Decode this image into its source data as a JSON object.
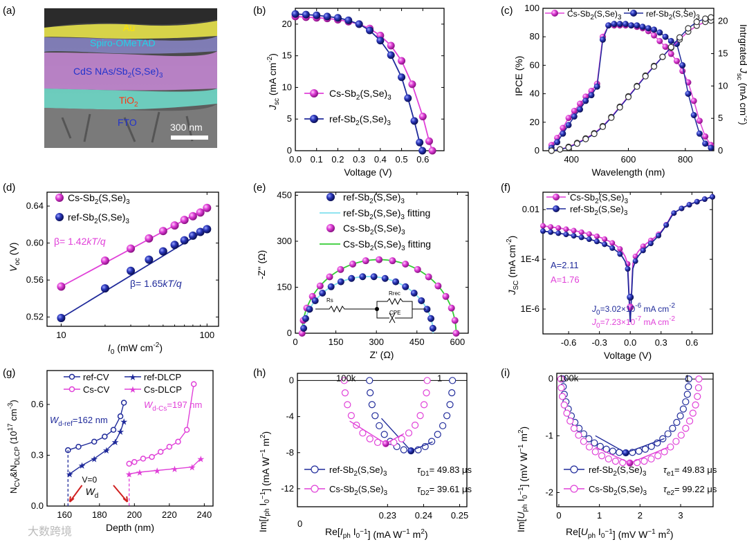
{
  "colors": {
    "cs": "#e040d8",
    "ref": "#1f2a9a",
    "cyan": "#7fe0ee",
    "green": "#33cc33"
  },
  "panel_labels": [
    "(a)",
    "(b)",
    "(c)",
    "(d)",
    "(e)",
    "(f)",
    "(g)",
    "(h)",
    "(i)"
  ],
  "panel_a": {
    "layers": [
      {
        "text": "Au",
        "color": "#ffe600"
      },
      {
        "text": "Spiro-OMeTAD",
        "color": "#21d4e8"
      },
      {
        "text": "CdS NAs/Sb2(S,Se)3",
        "color": "#2233cc"
      },
      {
        "text": "TiO2",
        "color": "#ff3311"
      },
      {
        "text": "FTO",
        "color": "#2233cc"
      }
    ],
    "scalebar": "300 nm"
  },
  "watermark": "大数跨境",
  "chart_data": [
    {
      "id": "b",
      "type": "line",
      "xlabel": "Voltage (V)",
      "ylabel": "Jsc (mA cm-2)",
      "xlim": [
        0,
        0.7
      ],
      "ylim": [
        0,
        22.5
      ],
      "xticks": [
        0.0,
        0.1,
        0.2,
        0.3,
        0.4,
        0.5,
        0.6
      ],
      "yticks": [
        0,
        5,
        10,
        15,
        20
      ],
      "series": [
        {
          "name": "Cs-Sb2(S,Se)3",
          "color": "#e040d8",
          "x": [
            0,
            0.05,
            0.1,
            0.15,
            0.2,
            0.25,
            0.3,
            0.35,
            0.4,
            0.45,
            0.5,
            0.55,
            0.6,
            0.63,
            0.645
          ],
          "y": [
            21.2,
            21.1,
            21.0,
            20.9,
            20.7,
            20.4,
            20.0,
            19.3,
            18.2,
            16.6,
            14.2,
            10.5,
            5.4,
            1.5,
            0
          ]
        },
        {
          "name": "ref-Sb2(S,Se)3",
          "color": "#1f2a9a",
          "x": [
            0,
            0.05,
            0.1,
            0.15,
            0.2,
            0.25,
            0.3,
            0.35,
            0.4,
            0.45,
            0.5,
            0.53,
            0.56,
            0.585,
            0.598
          ],
          "y": [
            21.6,
            21.5,
            21.4,
            21.2,
            21.0,
            20.6,
            20.0,
            19.0,
            17.4,
            15.1,
            11.6,
            8.3,
            4.7,
            1.3,
            0
          ]
        }
      ]
    },
    {
      "id": "c",
      "type": "line",
      "xlabel": "Wavelength (nm)",
      "ylabel": "IPCE (%)",
      "y2label": "Intrgrated Jsc (mA cm-2)",
      "xlim": [
        300,
        900
      ],
      "ylim": [
        0,
        100
      ],
      "y2lim": [
        0,
        22
      ],
      "xticks": [
        400,
        600,
        800
      ],
      "yticks": [
        0,
        20,
        40,
        60,
        80,
        100
      ],
      "y2ticks": [
        0,
        5,
        10,
        15,
        20
      ],
      "series": [
        {
          "name": "Cs-Sb2(S,Se)3",
          "color": "#e040d8",
          "x": [
            330,
            350,
            370,
            390,
            410,
            430,
            450,
            470,
            490,
            510,
            530,
            550,
            570,
            590,
            610,
            630,
            650,
            670,
            690,
            710,
            730,
            750,
            770,
            790,
            810,
            830,
            850,
            870,
            890
          ],
          "y": [
            4,
            9,
            16,
            23,
            28,
            33,
            38,
            42,
            47,
            80,
            88,
            88,
            88,
            88,
            88,
            87,
            86,
            84,
            81,
            77,
            73,
            68,
            63,
            56,
            48,
            35,
            21,
            10,
            4
          ]
        },
        {
          "name": "ref-Sb2(S,Se)3",
          "color": "#1f2a9a",
          "x": [
            330,
            350,
            370,
            390,
            410,
            430,
            450,
            470,
            490,
            510,
            530,
            550,
            570,
            590,
            610,
            630,
            650,
            670,
            690,
            710,
            730,
            750,
            770,
            790,
            810,
            830,
            850,
            870,
            890
          ],
          "y": [
            2,
            6,
            12,
            18,
            24,
            29,
            35,
            39,
            45,
            78,
            88,
            89,
            89,
            89,
            88,
            88,
            87,
            86,
            85,
            83,
            80,
            77,
            75,
            60,
            40,
            25,
            12,
            5,
            2
          ]
        },
        {
          "name": "Cs integrated",
          "color": "#e040d8",
          "axis": "y2",
          "x": [
            330,
            360,
            390,
            420,
            450,
            480,
            510,
            540,
            570,
            600,
            630,
            660,
            690,
            720,
            750,
            780,
            810,
            840,
            870,
            890
          ],
          "y": [
            0,
            0.2,
            0.6,
            1.2,
            1.9,
            2.7,
            3.8,
            5.2,
            6.8,
            8.4,
            10.0,
            11.6,
            13.1,
            14.5,
            15.9,
            17.2,
            18.4,
            19.3,
            19.9,
            20.1
          ]
        },
        {
          "name": "ref integrated",
          "color": "#1f2a9a",
          "axis": "y2",
          "x": [
            330,
            360,
            390,
            420,
            450,
            480,
            510,
            540,
            570,
            600,
            630,
            660,
            690,
            720,
            750,
            780,
            810,
            840,
            870,
            890
          ],
          "y": [
            0,
            0.2,
            0.5,
            1.1,
            1.8,
            2.6,
            3.7,
            5.1,
            6.7,
            8.3,
            9.9,
            11.5,
            13.0,
            14.5,
            16.0,
            17.5,
            18.9,
            19.9,
            20.4,
            20.6
          ]
        }
      ]
    },
    {
      "id": "d",
      "type": "scatter",
      "xlabel": "I0 (mW cm-2)",
      "ylabel": "Voc (V)",
      "xscale": "log",
      "xlim": [
        8,
        120
      ],
      "ylim": [
        0.51,
        0.655
      ],
      "xticks": [
        10,
        100
      ],
      "yticks": [
        0.52,
        0.56,
        0.6,
        0.64
      ],
      "annotations": [
        "β= 1.42kT/q",
        "β= 1.65kT/q"
      ],
      "series": [
        {
          "name": "Cs-Sb2(S,Se)3",
          "color": "#e040d8",
          "x": [
            10,
            20,
            30,
            40,
            50,
            60,
            70,
            80,
            90,
            100
          ],
          "y": [
            0.553,
            0.581,
            0.594,
            0.605,
            0.613,
            0.619,
            0.625,
            0.629,
            0.633,
            0.638
          ]
        },
        {
          "name": "ref-Sb2(S,Se)3",
          "color": "#1f2a9a",
          "x": [
            10,
            20,
            30,
            40,
            50,
            60,
            70,
            80,
            90,
            100
          ],
          "y": [
            0.519,
            0.551,
            0.57,
            0.582,
            0.591,
            0.598,
            0.603,
            0.608,
            0.612,
            0.615
          ]
        }
      ]
    },
    {
      "id": "e",
      "type": "scatter",
      "xlabel": "Z' (Ω)",
      "ylabel": "-Z'' (Ω)",
      "xlim": [
        0,
        640
      ],
      "ylim": [
        0,
        460
      ],
      "xticks": [
        0,
        150,
        300,
        450,
        600
      ],
      "yticks": [
        0,
        150,
        300,
        450
      ],
      "circuit": [
        "Rs",
        "Rrec",
        "CPE"
      ],
      "series": [
        {
          "name": "ref-Sb2(S,Se)3",
          "color": "#1f2a9a",
          "r": 240,
          "cx": 270,
          "rc": 185
        },
        {
          "name": "ref-Sb2(S,Se)3 fitting",
          "color": "#7fe0ee"
        },
        {
          "name": "Cs-Sb2(S,Se)3",
          "color": "#e040d8",
          "r": 285,
          "cx": 310,
          "rc": 240
        },
        {
          "name": "Cs-Sb2(S,Se)3 fitting",
          "color": "#33cc33"
        }
      ]
    },
    {
      "id": "f",
      "type": "line",
      "xlabel": "Voltage (V)",
      "ylabel": "JSC (mA cm-2)",
      "yscale": "log",
      "xlim": [
        -0.85,
        0.8
      ],
      "ylim": [
        1e-07,
        0.05
      ],
      "xticks": [
        -0.6,
        -0.3,
        0.0,
        0.3,
        0.6
      ],
      "yticks": [
        "1E-6",
        "1E-4",
        "0.01"
      ],
      "annotations": [
        "A=2.11",
        "A=1.76",
        "J0=3.02×10-6 mA cm-2",
        "J0=7.23×10-7 mA cm-2"
      ],
      "series": [
        {
          "name": "Cs-Sb2(S,Se)3",
          "color": "#e040d8"
        },
        {
          "name": "ref-Sb2(S,Se)3",
          "color": "#1f2a9a"
        }
      ]
    },
    {
      "id": "g",
      "type": "line",
      "xlabel": "Depth (nm)",
      "ylabel": "NCV&NDLCP (1017 cm-3)",
      "xlim": [
        150,
        245
      ],
      "ylim": [
        0,
        0.8
      ],
      "xticks": [
        160,
        180,
        200,
        220,
        240
      ],
      "yticks": [
        0.0,
        0.3,
        0.6
      ],
      "annotations": [
        "Wd-ref=162 nm",
        "Wd-Cs=197 nm",
        "V=0",
        "Wd"
      ],
      "series": [
        {
          "name": "ref-CV",
          "color": "#1f2a9a",
          "x": [
            162,
            168,
            177,
            183,
            188,
            192,
            194
          ],
          "y": [
            0.33,
            0.35,
            0.38,
            0.41,
            0.45,
            0.53,
            0.61
          ]
        },
        {
          "name": "ref-DLCP",
          "color": "#1f2a9a",
          "x": [
            163,
            170,
            177,
            184,
            189,
            192,
            194
          ],
          "y": [
            0.19,
            0.24,
            0.28,
            0.33,
            0.38,
            0.44,
            0.5
          ]
        },
        {
          "name": "Cs-CV",
          "color": "#e040d8",
          "x": [
            197,
            200,
            205,
            210,
            215,
            220,
            225,
            230,
            234
          ],
          "y": [
            0.25,
            0.26,
            0.28,
            0.29,
            0.32,
            0.35,
            0.38,
            0.45,
            0.72
          ]
        },
        {
          "name": "Cs-DLCP",
          "color": "#e040d8",
          "x": [
            197,
            203,
            213,
            223,
            233,
            238
          ],
          "y": [
            0.19,
            0.2,
            0.21,
            0.22,
            0.23,
            0.28
          ]
        }
      ]
    },
    {
      "id": "h",
      "type": "scatter",
      "xlabel": "Re[Iph I0-1] (mA W-1 m2)",
      "ylabel": "Im[Iph I0-1] (mA W-1 m2)",
      "xlim": [
        0.2,
        0.25
      ],
      "ylim": [
        -14,
        1
      ],
      "xticks": [
        0.23,
        0.24,
        0.25
      ],
      "yticks": [
        0,
        -4,
        -8,
        -12
      ],
      "freq_labels": [
        "100k",
        "1"
      ],
      "series": [
        {
          "name": "ref-Sb2(S,Se)3",
          "color": "#1f2a9a",
          "tau": "τD1= 49.83 μs"
        },
        {
          "name": "Cs-Sb2(S,Se)3",
          "color": "#e040d8",
          "tau": "τD2= 39.61 μs"
        }
      ]
    },
    {
      "id": "i",
      "type": "scatter",
      "xlabel": "Re[Uph I0-1] (mV W-1 m2)",
      "ylabel": "Im[Uph I0-1] (mV W-1 m2)",
      "xlim": [
        -0.3,
        3.9
      ],
      "ylim": [
        -2.25,
        0.1
      ],
      "xticks": [
        0,
        1,
        2,
        3
      ],
      "yticks": [
        0,
        -1,
        -2
      ],
      "freq_labels": [
        "100k",
        "1"
      ],
      "series": [
        {
          "name": "ref-Sb2(S,Se)3",
          "color": "#1f2a9a",
          "tau": "τe1= 49.83 μs"
        },
        {
          "name": "Cs-Sb2(S,Se)3",
          "color": "#e040d8",
          "tau": "τe2= 99.22 μs"
        }
      ]
    }
  ]
}
